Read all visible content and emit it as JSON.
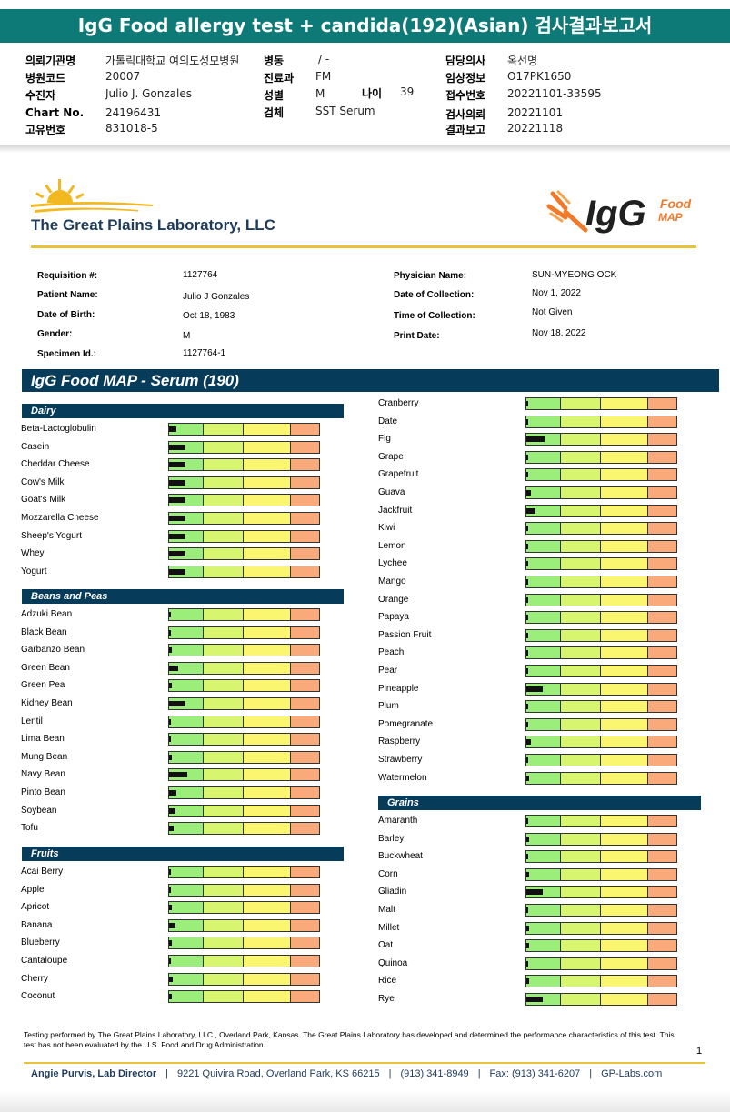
{
  "title": "IgG Food allergy test + candida(192)(Asian) 검사결과보고서",
  "header": {
    "left": [
      {
        "label": "의뢰기관명",
        "value": "가톨릭대학교 여의도성모병원"
      },
      {
        "label": "병원코드",
        "value": "20007"
      },
      {
        "label": "수진자",
        "value": "Julio J. Gonzales"
      },
      {
        "label": "Chart No.",
        "value": "24196431"
      },
      {
        "label": "고유번호",
        "value": "831018-5"
      }
    ],
    "middle": [
      {
        "label": "병동",
        "value": "/ -"
      },
      {
        "label": "진료과",
        "value": "FM"
      },
      {
        "label": "성별",
        "value": "M"
      },
      {
        "label": "검체",
        "value": "SST Serum"
      }
    ],
    "age_label": "나이",
    "age_value": "39",
    "right": [
      {
        "label": "담당의사",
        "value": "옥선명"
      },
      {
        "label": "임상정보",
        "value": "O17PK1650"
      },
      {
        "label": "접수번호",
        "value": "20221101-33595"
      },
      {
        "label": "검사의뢰",
        "value": "20221101"
      },
      {
        "label": "결과보고",
        "value": "20221118"
      }
    ]
  },
  "lab": {
    "name": "The Great Plains Laboratory, LLC",
    "logo_igg": "IgG",
    "logo_food": "Food",
    "logo_map": "MAP"
  },
  "info": {
    "left": [
      {
        "label": "Requisition #:",
        "value": "1127764"
      },
      {
        "label": "Patient Name:",
        "value": "Julio J Gonzales"
      },
      {
        "label": "Date of Birth:",
        "value": "Oct 18, 1983"
      },
      {
        "label": "Gender:",
        "value": "M"
      },
      {
        "label": "Specimen Id.:",
        "value": "1127764-1"
      }
    ],
    "right": [
      {
        "label": "Physician Name:",
        "value": "SUN-MYEONG OCK"
      },
      {
        "label": "Date of Collection:",
        "value": "Nov 1, 2022"
      },
      {
        "label": "Time of Collection:",
        "value": "Not Given"
      },
      {
        "label": "Print Date:",
        "value": "Nov 18, 2022"
      }
    ]
  },
  "banner": "IgG Food MAP - Serum (190)",
  "categories": {
    "dairy": {
      "title": "Dairy",
      "items": [
        {
          "name": "Beta-Lactoglobulin",
          "level": 0.045
        },
        {
          "name": "Casein",
          "level": 0.11
        },
        {
          "name": "Cheddar Cheese",
          "level": 0.11
        },
        {
          "name": "Cow's Milk",
          "level": 0.11
        },
        {
          "name": "Goat's Milk",
          "level": 0.11
        },
        {
          "name": "Mozzarella Cheese",
          "level": 0.11
        },
        {
          "name": "Sheep's Yogurt",
          "level": 0.11
        },
        {
          "name": "Whey",
          "level": 0.11
        },
        {
          "name": "Yogurt",
          "level": 0.11
        }
      ]
    },
    "beans": {
      "title": "Beans and Peas",
      "items": [
        {
          "name": "Adzuki Bean",
          "level": 0.012
        },
        {
          "name": "Black Bean",
          "level": 0.0
        },
        {
          "name": "Garbanzo Bean",
          "level": 0.015
        },
        {
          "name": "Green Bean",
          "level": 0.06
        },
        {
          "name": "Green Pea",
          "level": 0.015
        },
        {
          "name": "Kidney Bean",
          "level": 0.11
        },
        {
          "name": "Lentil",
          "level": 0.012
        },
        {
          "name": "Lima Bean",
          "level": 0.012
        },
        {
          "name": "Mung Bean",
          "level": 0.015
        },
        {
          "name": "Navy Bean",
          "level": 0.12
        },
        {
          "name": "Pinto Bean",
          "level": 0.05
        },
        {
          "name": "Soybean",
          "level": 0.04
        },
        {
          "name": "Tofu",
          "level": 0.03
        }
      ]
    },
    "fruits": {
      "title": "Fruits",
      "items": [
        {
          "name": "Acai Berry",
          "level": 0.012
        },
        {
          "name": "Apple",
          "level": 0.012
        },
        {
          "name": "Apricot",
          "level": 0.015
        },
        {
          "name": "Banana",
          "level": 0.04
        },
        {
          "name": "Blueberry",
          "level": 0.015
        },
        {
          "name": "Cantaloupe",
          "level": 0.01
        },
        {
          "name": "Cherry",
          "level": 0.025
        },
        {
          "name": "Coconut",
          "level": 0.02
        }
      ]
    },
    "fruits2": {
      "items": [
        {
          "name": "Cranberry",
          "level": 0.012
        },
        {
          "name": "Date",
          "level": 0.012
        },
        {
          "name": "Fig",
          "level": 0.12
        },
        {
          "name": "Grape",
          "level": 0.012
        },
        {
          "name": "Grapefruit",
          "level": 0.012
        },
        {
          "name": "Guava",
          "level": 0.03
        },
        {
          "name": "Jackfruit",
          "level": 0.06
        },
        {
          "name": "Kiwi",
          "level": 0.012
        },
        {
          "name": "Lemon",
          "level": 0.0
        },
        {
          "name": "Lychee",
          "level": 0.012
        },
        {
          "name": "Mango",
          "level": 0.0
        },
        {
          "name": "Orange",
          "level": 0.012
        },
        {
          "name": "Papaya",
          "level": 0.012
        },
        {
          "name": "Passion Fruit",
          "level": 0.012
        },
        {
          "name": "Peach",
          "level": 0.012
        },
        {
          "name": "Pear",
          "level": 0.0
        },
        {
          "name": "Pineapple",
          "level": 0.11
        },
        {
          "name": "Plum",
          "level": 0.012
        },
        {
          "name": "Pomegranate",
          "level": 0.0
        },
        {
          "name": "Raspberry",
          "level": 0.03
        },
        {
          "name": "Strawberry",
          "level": 0.0
        },
        {
          "name": "Watermelon",
          "level": 0.02
        }
      ]
    },
    "grains": {
      "title": "Grains",
      "items": [
        {
          "name": "Amaranth",
          "level": 0.012
        },
        {
          "name": "Barley",
          "level": 0.02
        },
        {
          "name": "Buckwheat",
          "level": 0.012
        },
        {
          "name": "Corn",
          "level": 0.02
        },
        {
          "name": "Gliadin",
          "level": 0.11
        },
        {
          "name": "Malt",
          "level": 0.012
        },
        {
          "name": "Millet",
          "level": 0.015
        },
        {
          "name": "Oat",
          "level": 0.02
        },
        {
          "name": "Quinoa",
          "level": 0.012
        },
        {
          "name": "Rice",
          "level": 0.02
        },
        {
          "name": "Rye",
          "level": 0.11
        }
      ]
    }
  },
  "footer": {
    "disclaimer": "Testing performed by The Great Plains Laboratory, LLC., Overland Park, Kansas.  The Great Plains Laboratory has developed and determined the performance characteristics of this test.  This test has not been evaluated by the U.S.  Food and Drug Administration.",
    "page": "1",
    "director": "Angie Purvis, Lab Director",
    "address": "9221 Quivira Road, Overland Park, KS 66215",
    "phone": "(913) 341-8949",
    "fax": "Fax: (913) 341-6207",
    "web": "GP-Labs.com"
  },
  "colors": {
    "teal": "#0d7a78",
    "navy": "#073b5a",
    "gold": "#e8c33a",
    "green": "#9cee7a",
    "lime": "#d7f56e",
    "yellow": "#fbf670",
    "orange": "#f9a97a"
  }
}
